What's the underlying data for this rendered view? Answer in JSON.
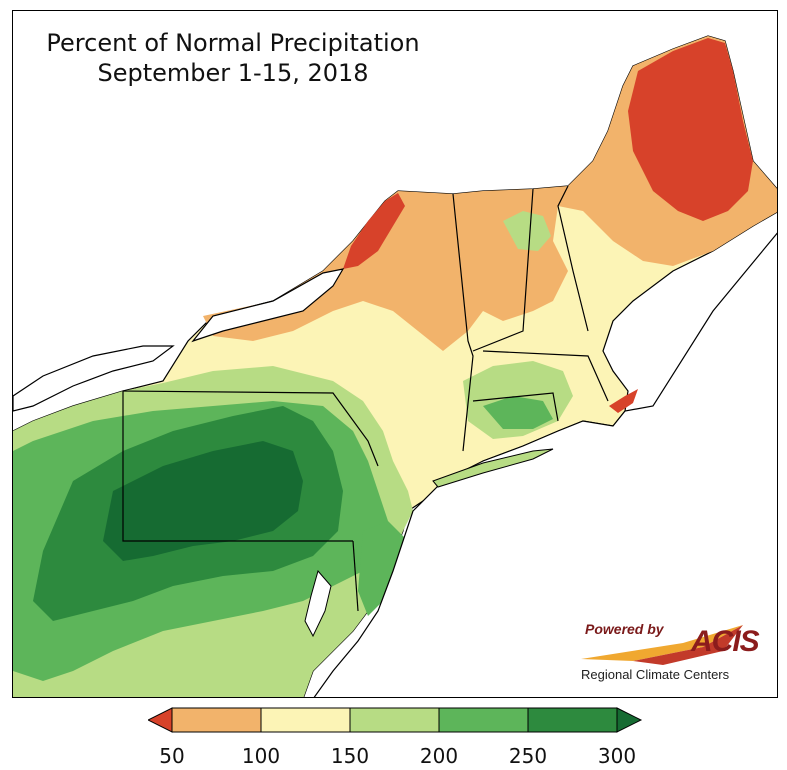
{
  "title": {
    "line1": "Percent of Normal Precipitation",
    "line2": "September 1-15, 2018"
  },
  "logo": {
    "powered_by": "Powered by",
    "name": "ACIS",
    "subtitle": "Regional Climate Centers"
  },
  "legend": {
    "ticks": [
      "50",
      "100",
      "150",
      "200",
      "250",
      "300"
    ],
    "bins": [
      {
        "range": "<50",
        "color": "#d7422a"
      },
      {
        "range": "50-100",
        "color": "#f2b36b"
      },
      {
        "range": "100-150",
        "color": "#fcf4b6"
      },
      {
        "range": "150-200",
        "color": "#b7dc84"
      },
      {
        "range": "200-250",
        "color": "#5db55a"
      },
      {
        "range": "250-300",
        "color": "#2d8a3e"
      },
      {
        "range": ">300",
        "color": "#166b32"
      }
    ]
  },
  "colors": {
    "below_50": "#d7422a",
    "c50_100": "#f2b36b",
    "c100_150": "#fcf4b6",
    "c150_200": "#b7dc84",
    "c200_250": "#5db55a",
    "c250_300": "#2d8a3e",
    "above_300": "#166b32",
    "water": "#ffffff",
    "border": "#000000"
  }
}
